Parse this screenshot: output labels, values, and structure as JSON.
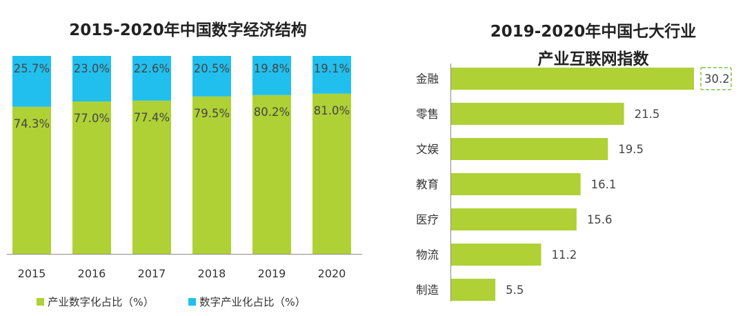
{
  "colors": {
    "green": "#afd135",
    "cyan": "#21bfee",
    "axis": "#8c8c8c",
    "text": "#444444"
  },
  "chart_data": [
    {
      "type": "bar",
      "stacked": true,
      "title": "2015-2020年中国数字经济结构",
      "categories": [
        "2015",
        "2016",
        "2017",
        "2018",
        "2019",
        "2020"
      ],
      "series": [
        {
          "name": "产业数字化占比（%）",
          "values": [
            74.3,
            77.0,
            77.4,
            79.5,
            80.2,
            81.0
          ],
          "labels": [
            "74.3%",
            "77.0%",
            "77.4%",
            "79.5%",
            "80.2%",
            "81.0%"
          ]
        },
        {
          "name": "数字产业化占比（%）",
          "values": [
            25.7,
            23.0,
            22.6,
            20.5,
            19.8,
            19.1
          ],
          "labels": [
            "25.7%",
            "23.0%",
            "22.6%",
            "20.5%",
            "19.8%",
            "19.1%"
          ]
        }
      ],
      "ylim": [
        0,
        100
      ],
      "legend": "bottom"
    },
    {
      "type": "bar",
      "orientation": "horizontal",
      "title_line1": "2019-2020年中国七大行业",
      "title_line2": "产业互联网指数",
      "categories": [
        "金融",
        "零售",
        "文娱",
        "教育",
        "医疗",
        "物流",
        "制造"
      ],
      "values": [
        30.2,
        21.5,
        19.5,
        16.1,
        15.6,
        11.2,
        5.5
      ],
      "labels": [
        "30.2",
        "21.5",
        "19.5",
        "16.1",
        "15.6",
        "11.2",
        "5.5"
      ],
      "highlight": "金融",
      "xlim": [
        0,
        30.2
      ]
    }
  ]
}
